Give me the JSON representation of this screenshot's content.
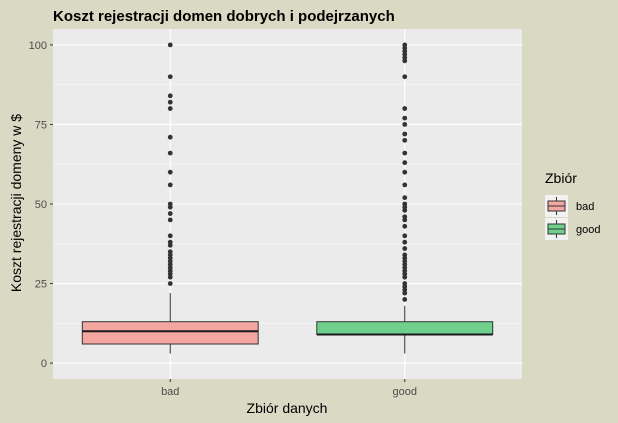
{
  "chart_data": {
    "type": "box",
    "title": "Koszt rejestracji domen dobrych i podejrzanych",
    "xlabel": "Zbiór danych",
    "ylabel": "Koszt rejestracji domeny w $",
    "categories": [
      "bad",
      "good"
    ],
    "ylim": [
      -5,
      105
    ],
    "yticks": [
      0,
      25,
      50,
      75,
      100
    ],
    "grid": true,
    "legend": {
      "title": "Zbiór",
      "position": "right",
      "entries": [
        "bad",
        "good"
      ]
    },
    "colors": {
      "bad": "#f4a6a0",
      "good": "#6fd08d",
      "panel": "#ebebeb",
      "plot_bg": "#d9d9c4"
    },
    "series": [
      {
        "category": "bad",
        "min": 3,
        "q1": 6,
        "median": 10,
        "q3": 13,
        "max": 22,
        "outliers": [
          25,
          27,
          28,
          29,
          30,
          31,
          32,
          33,
          34,
          35,
          37,
          38,
          40,
          45,
          47,
          49,
          50,
          56,
          60,
          66,
          71,
          80,
          82,
          84,
          90,
          100
        ]
      },
      {
        "category": "good",
        "min": 3,
        "q1": 9,
        "median": 9,
        "q3": 13,
        "max": 18,
        "outliers": [
          20,
          22,
          23,
          24,
          25,
          27,
          28,
          29,
          30,
          31,
          32,
          33,
          34,
          36,
          38,
          40,
          43,
          45,
          46,
          48,
          49,
          50,
          52,
          56,
          60,
          63,
          66,
          70,
          72,
          75,
          77,
          80,
          90,
          95,
          96,
          97,
          98,
          99,
          100
        ]
      }
    ]
  }
}
